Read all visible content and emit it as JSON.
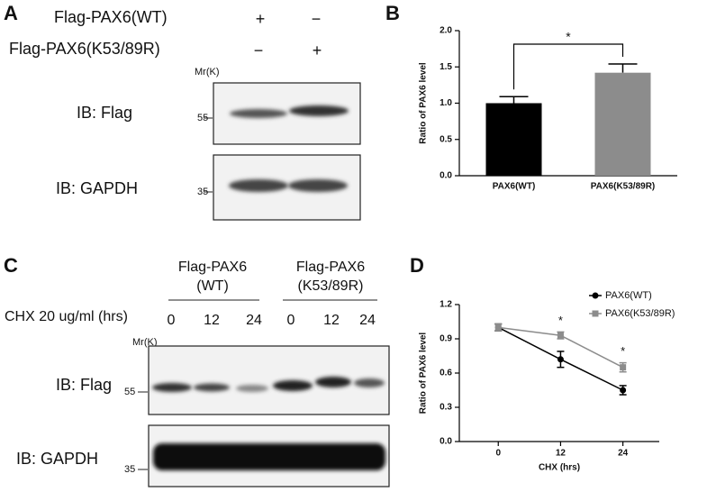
{
  "panel_a": {
    "letter": "A",
    "row1_label": "Flag-PAX6(WT)",
    "row1_lane1": "+",
    "row1_lane2": "−",
    "row2_label": "Flag-PAX6(K53/89R)",
    "row2_lane1": "−",
    "row2_lane2": "+",
    "mw_header": "Mr(K)",
    "blot1_label": "IB: Flag",
    "blot1_marker": "55",
    "blot2_label": "IB: GAPDH",
    "blot2_marker": "35"
  },
  "panel_c": {
    "letter": "C",
    "group1_title": "Flag-PAX6",
    "group1_subtitle": "(WT)",
    "group2_title": "Flag-PAX6",
    "group2_subtitle": "(K53/89R)",
    "treatment_label": "CHX 20 ug/ml (hrs)",
    "lanes": [
      "0",
      "12",
      "24",
      "0",
      "12",
      "24"
    ],
    "mw_header": "Mr(K)",
    "blot1_label": "IB: Flag",
    "blot1_marker": "55",
    "blot2_label": "IB: GAPDH",
    "blot2_marker": "35"
  },
  "chart_data": [
    {
      "type": "bar",
      "letter": "B",
      "y_label": "Ratio of PAX6 level",
      "categories": [
        "PAX6(WT)",
        "PAX6(K53/89R)"
      ],
      "values": [
        1.0,
        1.42
      ],
      "errors": [
        0.09,
        0.12
      ],
      "colors": [
        "#000000",
        "#8c8c8c"
      ],
      "annotation": "*",
      "ylim": [
        0,
        2
      ],
      "yticks": [
        {
          "value": 0,
          "label": "0.0"
        },
        0.5,
        {
          "value": 1,
          "label": "1.0"
        },
        1.5,
        {
          "value": 2,
          "label": "2.0"
        }
      ]
    },
    {
      "type": "line",
      "letter": "D",
      "x_label": "CHX (hrs)",
      "y_label": "Ratio of PAX6 level",
      "x": [
        0,
        12,
        24
      ],
      "series": [
        {
          "name": "PAX6(WT)",
          "color": "#000000",
          "marker": "circle",
          "values": [
            1.0,
            0.72,
            0.45
          ],
          "errors": [
            0.03,
            0.07,
            0.04
          ]
        },
        {
          "name": "PAX6(K53/89R)",
          "color": "#8c8c8c",
          "marker": "square",
          "values": [
            1.0,
            0.93,
            0.65
          ],
          "errors": [
            0.03,
            0.03,
            0.04
          ]
        }
      ],
      "annotations": [
        {
          "x": 12,
          "label": "*"
        },
        {
          "x": 24,
          "label": "*"
        }
      ],
      "legend": "upper right",
      "xlim": [
        -7.5,
        31
      ],
      "xticks": [
        0,
        12,
        24
      ],
      "ylim": [
        0,
        1.2
      ],
      "yticks": [
        {
          "value": 0,
          "label": "0.0"
        },
        0.3,
        0.6,
        0.9,
        1.2
      ]
    }
  ]
}
